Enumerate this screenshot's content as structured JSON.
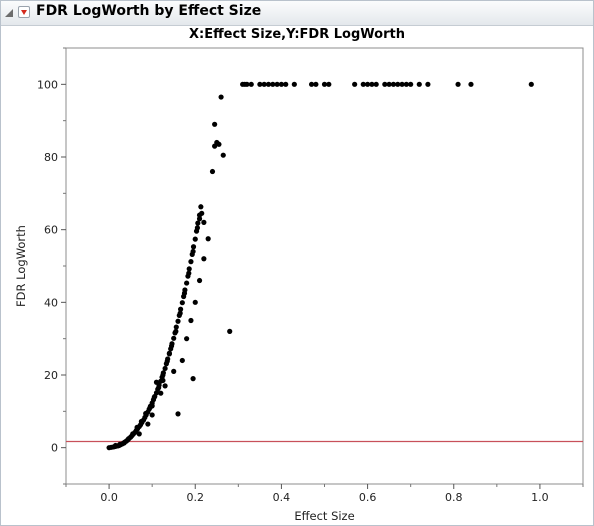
{
  "header": {
    "title": "FDR LogWorth by Effect Size"
  },
  "chart_data": {
    "type": "scatter",
    "title": "X:Effect Size,Y:FDR LogWorth",
    "xlabel": "Effect Size",
    "ylabel": "FDR LogWorth",
    "xlim": [
      -0.1,
      1.1
    ],
    "ylim": [
      -10,
      110
    ],
    "xticks": [
      0.0,
      0.2,
      0.4,
      0.6,
      0.8,
      1.0
    ],
    "xtick_labels": [
      "0.0",
      "0.2",
      "0.4",
      "0.6",
      "0.8",
      "1.0"
    ],
    "yticks": [
      0,
      20,
      40,
      60,
      80,
      100
    ],
    "ytick_labels": [
      "0",
      "20",
      "40",
      "60",
      "80",
      "100"
    ],
    "reference_line": {
      "y": 1.7,
      "color": "#c8505a"
    },
    "marker_color": "#000000",
    "grid": false,
    "points": [
      [
        0.0,
        0.0
      ],
      [
        0.005,
        0.1
      ],
      [
        0.01,
        0.2
      ],
      [
        0.013,
        0.3
      ],
      [
        0.016,
        0.4
      ],
      [
        0.02,
        0.5
      ],
      [
        0.023,
        0.6
      ],
      [
        0.026,
        0.8
      ],
      [
        0.03,
        1.0
      ],
      [
        0.033,
        1.2
      ],
      [
        0.036,
        1.5
      ],
      [
        0.04,
        1.8
      ],
      [
        0.043,
        2.1
      ],
      [
        0.046,
        2.5
      ],
      [
        0.05,
        2.9
      ],
      [
        0.053,
        3.3
      ],
      [
        0.056,
        3.7
      ],
      [
        0.06,
        4.2
      ],
      [
        0.063,
        4.7
      ],
      [
        0.066,
        5.2
      ],
      [
        0.07,
        5.8
      ],
      [
        0.073,
        6.3
      ],
      [
        0.076,
        6.9
      ],
      [
        0.08,
        7.6
      ],
      [
        0.083,
        8.3
      ],
      [
        0.086,
        9.0
      ],
      [
        0.09,
        9.8
      ],
      [
        0.093,
        10.6
      ],
      [
        0.096,
        11.4
      ],
      [
        0.1,
        12.3
      ],
      [
        0.103,
        13.2
      ],
      [
        0.106,
        14.1
      ],
      [
        0.11,
        15.1
      ],
      [
        0.113,
        16.1
      ],
      [
        0.116,
        17.2
      ],
      [
        0.12,
        18.3
      ],
      [
        0.123,
        19.4
      ],
      [
        0.126,
        20.6
      ],
      [
        0.13,
        21.8
      ],
      [
        0.133,
        23.1
      ],
      [
        0.136,
        24.4
      ],
      [
        0.14,
        25.8
      ],
      [
        0.143,
        27.2
      ],
      [
        0.146,
        28.6
      ],
      [
        0.15,
        30.1
      ],
      [
        0.153,
        31.6
      ],
      [
        0.156,
        33.2
      ],
      [
        0.16,
        34.8
      ],
      [
        0.163,
        36.4
      ],
      [
        0.166,
        38.1
      ],
      [
        0.17,
        39.9
      ],
      [
        0.173,
        41.6
      ],
      [
        0.176,
        43.4
      ],
      [
        0.18,
        45.3
      ],
      [
        0.183,
        47.2
      ],
      [
        0.186,
        49.2
      ],
      [
        0.19,
        51.2
      ],
      [
        0.193,
        53.2
      ],
      [
        0.196,
        55.3
      ],
      [
        0.2,
        57.4
      ],
      [
        0.203,
        59.6
      ],
      [
        0.206,
        61.8
      ],
      [
        0.21,
        64.0
      ],
      [
        0.213,
        66.3
      ],
      [
        0.015,
        0.6
      ],
      [
        0.025,
        0.9
      ],
      [
        0.035,
        1.3
      ],
      [
        0.045,
        2.4
      ],
      [
        0.055,
        3.8
      ],
      [
        0.065,
        5.6
      ],
      [
        0.075,
        7.2
      ],
      [
        0.085,
        9.4
      ],
      [
        0.095,
        11.0
      ],
      [
        0.105,
        13.9
      ],
      [
        0.115,
        16.5
      ],
      [
        0.125,
        20.0
      ],
      [
        0.135,
        23.8
      ],
      [
        0.145,
        28.0
      ],
      [
        0.155,
        32.0
      ],
      [
        0.165,
        37.0
      ],
      [
        0.175,
        42.5
      ],
      [
        0.185,
        48.0
      ],
      [
        0.195,
        54.0
      ],
      [
        0.205,
        60.5
      ],
      [
        0.07,
        3.8
      ],
      [
        0.09,
        6.5
      ],
      [
        0.1,
        9.0
      ],
      [
        0.12,
        15.0
      ],
      [
        0.13,
        17.0
      ],
      [
        0.15,
        21.0
      ],
      [
        0.16,
        9.3
      ],
      [
        0.17,
        24.0
      ],
      [
        0.18,
        30.0
      ],
      [
        0.19,
        35.0
      ],
      [
        0.195,
        19.0
      ],
      [
        0.2,
        40.0
      ],
      [
        0.21,
        46.0
      ],
      [
        0.22,
        52.0
      ],
      [
        0.23,
        57.5
      ],
      [
        0.24,
        76.0
      ],
      [
        0.245,
        83.0
      ],
      [
        0.25,
        84.0
      ],
      [
        0.26,
        96.5
      ],
      [
        0.265,
        80.5
      ],
      [
        0.28,
        32.0
      ],
      [
        0.21,
        63.0
      ],
      [
        0.215,
        64.5
      ],
      [
        0.22,
        62.0
      ],
      [
        0.245,
        89.0
      ],
      [
        0.255,
        83.5
      ],
      [
        0.1,
        11.5
      ],
      [
        0.11,
        18.0
      ],
      [
        0.125,
        18.5
      ],
      [
        0.14,
        26.0
      ],
      [
        0.31,
        100
      ],
      [
        0.315,
        100
      ],
      [
        0.32,
        100
      ],
      [
        0.33,
        100
      ],
      [
        0.35,
        100
      ],
      [
        0.36,
        100
      ],
      [
        0.37,
        100
      ],
      [
        0.38,
        100
      ],
      [
        0.39,
        100
      ],
      [
        0.4,
        100
      ],
      [
        0.41,
        100
      ],
      [
        0.43,
        100
      ],
      [
        0.47,
        100
      ],
      [
        0.48,
        100
      ],
      [
        0.5,
        100
      ],
      [
        0.51,
        100
      ],
      [
        0.57,
        100
      ],
      [
        0.59,
        100
      ],
      [
        0.6,
        100
      ],
      [
        0.61,
        100
      ],
      [
        0.62,
        100
      ],
      [
        0.64,
        100
      ],
      [
        0.65,
        100
      ],
      [
        0.66,
        100
      ],
      [
        0.67,
        100
      ],
      [
        0.68,
        100
      ],
      [
        0.69,
        100
      ],
      [
        0.7,
        100
      ],
      [
        0.72,
        100
      ],
      [
        0.74,
        100
      ],
      [
        0.81,
        100
      ],
      [
        0.84,
        100
      ],
      [
        0.98,
        100
      ]
    ]
  }
}
